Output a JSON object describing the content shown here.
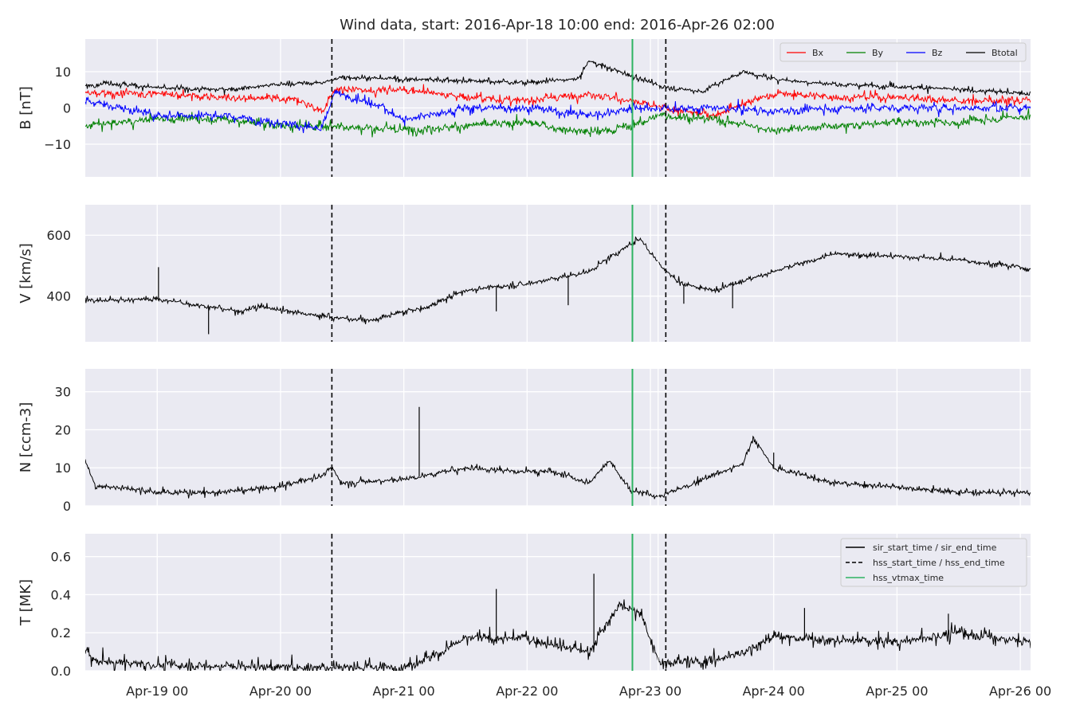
{
  "chart_data": {
    "type": "line",
    "title": "Wind data, start: 2016-Apr-18 10:00  end: 2016-Apr-26 02:00",
    "x_range": [
      "2016-04-18 10:00",
      "2016-04-26 02:00"
    ],
    "x_ticks": [
      {
        "t": "2016-04-19 00:00",
        "label": "Apr-19 00"
      },
      {
        "t": "2016-04-20 00:00",
        "label": "Apr-20 00"
      },
      {
        "t": "2016-04-21 00:00",
        "label": "Apr-21 00"
      },
      {
        "t": "2016-04-22 00:00",
        "label": "Apr-22 00"
      },
      {
        "t": "2016-04-23 00:00",
        "label": "Apr-23 00"
      },
      {
        "t": "2016-04-24 00:00",
        "label": "Apr-24 00"
      },
      {
        "t": "2016-04-25 00:00",
        "label": "Apr-25 00"
      },
      {
        "t": "2016-04-26 00:00",
        "label": "Apr-26 00"
      }
    ],
    "grid": true,
    "markers": [
      {
        "t": "2016-04-20 10:00",
        "kind": "hss_start_time",
        "color": "#000000",
        "dashed": true,
        "panels": "all"
      },
      {
        "t": "2016-04-22 20:30",
        "kind": "hss_vtmax_time",
        "color": "#2eb362",
        "dashed": false,
        "panels": "all"
      },
      {
        "t": "2016-04-23 01:30",
        "kind": "gridline",
        "color": "#ffffff",
        "dashed": false,
        "panels": "all"
      },
      {
        "t": "2016-04-23 03:00",
        "kind": "hss_end_time",
        "color": "#000000",
        "dashed": true,
        "panels": "all"
      }
    ],
    "panels": [
      {
        "id": "B",
        "ylabel": "B [nT]",
        "ylim": [
          -19,
          19
        ],
        "yticks": [
          -10,
          0,
          10
        ],
        "legend": {
          "placement": "upper-right",
          "columns": 4
        },
        "series": [
          {
            "name": "Bx",
            "color": "#ff0000",
            "noise": 0.6,
            "jitter": 0.9,
            "t": [
              "2016-04-18 10:00",
              "2016-04-19 00:00",
              "2016-04-19 12:00",
              "2016-04-20 04:00",
              "2016-04-20 08:00",
              "2016-04-20 10:30",
              "2016-04-21 00:00",
              "2016-04-21 12:00",
              "2016-04-22 00:00",
              "2016-04-22 12:00",
              "2016-04-22 20:00",
              "2016-04-23 02:00",
              "2016-04-23 12:00",
              "2016-04-24 00:00",
              "2016-04-24 12:00",
              "2016-04-25 00:00",
              "2016-04-25 12:00",
              "2016-04-26 02:00"
            ],
            "v": [
              4,
              4,
              3,
              2,
              -1,
              5,
              5,
              3,
              2,
              4,
              2,
              0,
              -2,
              4,
              3,
              3,
              2,
              2
            ]
          },
          {
            "name": "By",
            "color": "#008000",
            "noise": 0.6,
            "jitter": 1.0,
            "t": [
              "2016-04-18 10:00",
              "2016-04-19 00:00",
              "2016-04-19 12:00",
              "2016-04-20 00:00",
              "2016-04-20 10:00",
              "2016-04-21 00:00",
              "2016-04-21 12:00",
              "2016-04-22 00:00",
              "2016-04-22 12:00",
              "2016-04-22 20:00",
              "2016-04-23 02:00",
              "2016-04-23 12:00",
              "2016-04-24 00:00",
              "2016-04-24 12:00",
              "2016-04-25 00:00",
              "2016-04-25 12:00",
              "2016-04-26 02:00"
            ],
            "v": [
              -5,
              -3,
              -3,
              -5,
              -5,
              -6,
              -5,
              -4,
              -7,
              -5,
              -2,
              -3,
              -6,
              -5,
              -4,
              -4,
              -2
            ]
          },
          {
            "name": "Bz",
            "color": "#0000ff",
            "noise": 0.6,
            "jitter": 1.0,
            "t": [
              "2016-04-18 10:00",
              "2016-04-19 00:00",
              "2016-04-19 12:00",
              "2016-04-20 00:00",
              "2016-04-20 08:00",
              "2016-04-20 10:30",
              "2016-04-20 20:00",
              "2016-04-21 00:00",
              "2016-04-21 06:00",
              "2016-04-21 12:00",
              "2016-04-22 00:00",
              "2016-04-22 12:00",
              "2016-04-22 20:00",
              "2016-04-23 02:00",
              "2016-04-23 12:00",
              "2016-04-24 00:00",
              "2016-04-24 12:00",
              "2016-04-25 00:00",
              "2016-04-25 12:00",
              "2016-04-26 02:00"
            ],
            "v": [
              2,
              -2,
              -2,
              -4,
              -6,
              4,
              0,
              -3,
              -2,
              0,
              0,
              -2,
              0,
              0,
              0,
              -1,
              0,
              0,
              0,
              0
            ]
          },
          {
            "name": "Btotal",
            "color": "#000000",
            "noise": 0.3,
            "jitter": 0.6,
            "t": [
              "2016-04-18 10:00",
              "2016-04-18 14:00",
              "2016-04-19 00:00",
              "2016-04-19 12:00",
              "2016-04-20 00:00",
              "2016-04-20 08:00",
              "2016-04-20 12:00",
              "2016-04-21 00:00",
              "2016-04-21 12:00",
              "2016-04-22 00:00",
              "2016-04-22 10:00",
              "2016-04-22 12:00",
              "2016-04-22 16:00",
              "2016-04-22 20:00",
              "2016-04-23 02:00",
              "2016-04-23 10:00",
              "2016-04-23 18:00",
              "2016-04-24 00:00",
              "2016-04-24 12:00",
              "2016-04-25 00:00",
              "2016-04-25 12:00",
              "2016-04-26 02:00"
            ],
            "v": [
              6,
              7,
              5.5,
              5,
              6.5,
              7,
              8.5,
              8,
              7.5,
              7,
              8,
              13,
              11,
              9,
              6,
              4.5,
              10,
              8,
              6.5,
              6,
              5,
              4
            ]
          }
        ]
      },
      {
        "id": "V",
        "ylabel": "V [km/s]",
        "ylim": [
          250,
          700
        ],
        "yticks": [
          400,
          600
        ],
        "series": [
          {
            "name": "",
            "color": "#000000",
            "noise": 3,
            "jitter": 8,
            "t": [
              "2016-04-18 10:00",
              "2016-04-19 00:00",
              "2016-04-19 06:00",
              "2016-04-19 12:00",
              "2016-04-19 16:00",
              "2016-04-19 20:00",
              "2016-04-20 00:00",
              "2016-04-20 10:00",
              "2016-04-20 14:00",
              "2016-04-20 18:00",
              "2016-04-20 20:00",
              "2016-04-21 00:00",
              "2016-04-21 04:00",
              "2016-04-21 12:00",
              "2016-04-21 18:00",
              "2016-04-22 00:00",
              "2016-04-22 06:00",
              "2016-04-22 12:00",
              "2016-04-22 20:00",
              "2016-04-22 22:00",
              "2016-04-23 02:00",
              "2016-04-23 06:00",
              "2016-04-23 12:00",
              "2016-04-24 00:00",
              "2016-04-24 12:00",
              "2016-04-25 00:00",
              "2016-04-25 12:00",
              "2016-04-26 02:00"
            ],
            "v": [
              385,
              390,
              375,
              360,
              350,
              365,
              355,
              330,
              325,
              320,
              330,
              350,
              360,
              420,
              430,
              440,
              460,
              480,
              570,
              590,
              500,
              440,
              420,
              480,
              540,
              530,
              520,
              490
            ]
          }
        ],
        "spikes": [
          {
            "t": "2016-04-19 00:15",
            "v": 495
          },
          {
            "t": "2016-04-19 10:00",
            "v": 275
          },
          {
            "t": "2016-04-22 08:00",
            "v": 370
          },
          {
            "t": "2016-04-23 06:30",
            "v": 375
          },
          {
            "t": "2016-04-23 16:00",
            "v": 360
          },
          {
            "t": "2016-04-21 18:00",
            "v": 350
          }
        ]
      },
      {
        "id": "N",
        "ylabel": "N [ccm-3]",
        "ylim": [
          0,
          36
        ],
        "yticks": [
          0,
          10,
          20,
          30
        ],
        "series": [
          {
            "name": "",
            "color": "#000000",
            "noise": 0.3,
            "jitter": 0.7,
            "t": [
              "2016-04-18 10:00",
              "2016-04-18 12:00",
              "2016-04-18 16:00",
              "2016-04-19 00:00",
              "2016-04-19 12:00",
              "2016-04-20 00:00",
              "2016-04-20 08:00",
              "2016-04-20 10:00",
              "2016-04-20 12:00",
              "2016-04-21 00:00",
              "2016-04-21 12:00",
              "2016-04-22 00:00",
              "2016-04-22 06:00",
              "2016-04-22 12:00",
              "2016-04-22 16:00",
              "2016-04-22 20:00",
              "2016-04-23 02:00",
              "2016-04-23 12:00",
              "2016-04-23 18:00",
              "2016-04-23 20:00",
              "2016-04-24 00:00",
              "2016-04-24 12:00",
              "2016-04-25 00:00",
              "2016-04-25 12:00",
              "2016-04-26 02:00"
            ],
            "v": [
              12,
              5,
              5,
              3.5,
              3.5,
              5,
              8,
              10,
              6,
              7,
              10,
              9,
              9,
              6,
              12,
              4,
              2.5,
              8,
              11,
              18,
              10,
              6,
              5,
              3.5,
              3.5
            ]
          }
        ],
        "spikes": [
          {
            "t": "2016-04-21 03:00",
            "v": 26
          },
          {
            "t": "2016-04-24 00:00",
            "v": 14
          }
        ]
      },
      {
        "id": "T",
        "ylabel": "T [MK]",
        "ylim": [
          0,
          0.72
        ],
        "yticks": [
          0.0,
          0.2,
          0.4,
          0.6
        ],
        "yticklabels": [
          "0.0",
          "0.2",
          "0.4",
          "0.6"
        ],
        "legend": {
          "placement": "upper-right",
          "entries": [
            {
              "label": "sir_start_time / sir_end_time",
              "color": "#000000",
              "dashed": false
            },
            {
              "label": "hss_start_time / hss_end_time",
              "color": "#000000",
              "dashed": true
            },
            {
              "label": "hss_vtmax_time",
              "color": "#2eb362",
              "dashed": false
            }
          ]
        },
        "series": [
          {
            "name": "",
            "color": "#000000",
            "noise": 0.008,
            "jitter": 0.03,
            "t": [
              "2016-04-18 10:00",
              "2016-04-18 12:00",
              "2016-04-19 00:00",
              "2016-04-20 00:00",
              "2016-04-21 00:00",
              "2016-04-21 06:00",
              "2016-04-21 12:00",
              "2016-04-22 00:00",
              "2016-04-22 06:00",
              "2016-04-22 12:00",
              "2016-04-22 18:00",
              "2016-04-22 22:00",
              "2016-04-23 02:00",
              "2016-04-23 12:00",
              "2016-04-23 18:00",
              "2016-04-24 00:00",
              "2016-04-24 12:00",
              "2016-04-25 00:00",
              "2016-04-25 12:00",
              "2016-04-26 02:00"
            ],
            "v": [
              0.1,
              0.05,
              0.03,
              0.02,
              0.02,
              0.08,
              0.17,
              0.17,
              0.13,
              0.1,
              0.35,
              0.3,
              0.04,
              0.05,
              0.1,
              0.18,
              0.16,
              0.15,
              0.2,
              0.15
            ]
          }
        ],
        "spikes": [
          {
            "t": "2016-04-21 18:00",
            "v": 0.43
          },
          {
            "t": "2016-04-22 13:00",
            "v": 0.51
          },
          {
            "t": "2016-04-24 06:00",
            "v": 0.33
          },
          {
            "t": "2016-04-25 10:00",
            "v": 0.3
          }
        ]
      }
    ]
  }
}
